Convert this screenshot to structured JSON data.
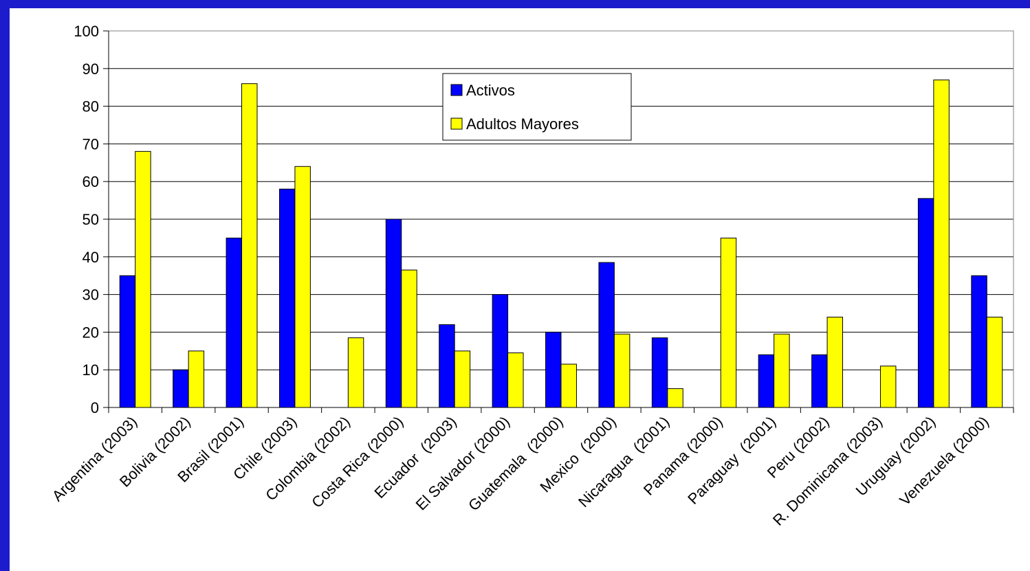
{
  "colors": {
    "background": "#1c1ccc",
    "activos": "#0000ff",
    "adultos_mayores": "#ffff00"
  },
  "chart_data": {
    "type": "bar",
    "ylim": [
      0,
      100
    ],
    "ytick_step": 10,
    "grid": "horizontal",
    "legend_position": "top-center",
    "categories": [
      "Argentina (2003)",
      "Bolivia (2002)",
      "Brasil (2001)",
      "Chile (2003)",
      "Colombia (2002)",
      "Costa Rica (2000)",
      "Ecuador  (2003)",
      "El Salvador (2000)",
      "Guatemala  (2000)",
      "Mexico  (2000)",
      "Nicaragua  (2001)",
      "Panama (2000)",
      "Paraguay  (2001)",
      "Peru (2002)",
      "R. Dominicana (2003)",
      "Uruguay (2002)",
      "Venezuela (2000)"
    ],
    "series": [
      {
        "name": "Activos",
        "color": "#0000ff",
        "values": [
          35,
          10,
          45,
          58,
          0,
          50,
          22,
          30,
          20,
          38.5,
          18.5,
          0,
          14,
          14,
          0,
          55.5,
          35
        ]
      },
      {
        "name": "Adultos Mayores",
        "color": "#ffff00",
        "values": [
          68,
          15,
          86,
          64,
          18.5,
          36.5,
          15,
          14.5,
          11.5,
          19.5,
          5,
          45,
          19.5,
          24,
          11,
          87,
          24
        ]
      }
    ]
  }
}
